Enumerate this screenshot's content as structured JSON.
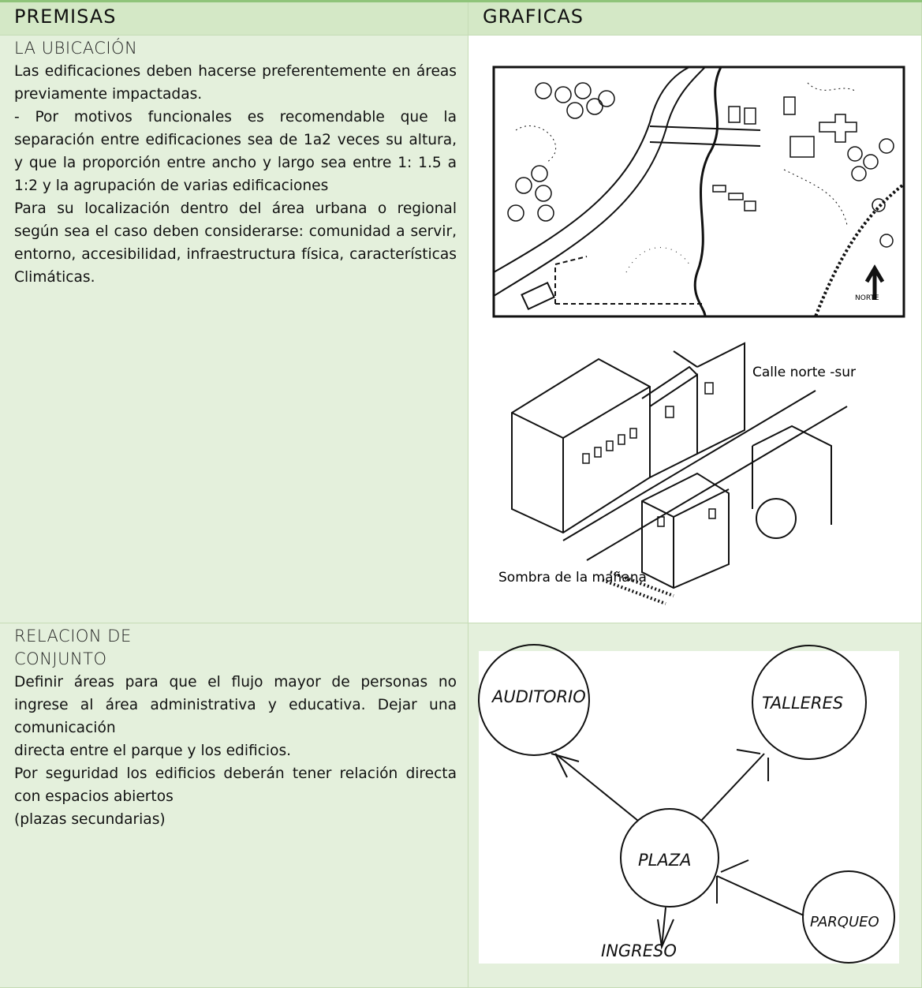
{
  "header": {
    "col1": "PREMISAS",
    "col2": "GRAFICAS"
  },
  "rows": [
    {
      "title": [
        "LA UBICACIÓN"
      ],
      "paragraphs": [
        "Las edificaciones deben hacerse preferentemente en áreas previamente impactadas.",
        "- Por motivos funcionales es recomendable que la separación entre edificaciones sea de 1a2 veces su altura, y que la proporción entre ancho y largo sea entre 1: 1.5 a 1:2 y la agrupación de varias edificaciones",
        "Para su localización dentro del área urbana o regional según sea el caso deben considerarse: comunidad a servir, entorno, accesibilidad, infraestructura física, características Climáticas."
      ],
      "figures": {
        "map_label": "NORTE",
        "street_label": "Calle norte -sur",
        "shadow_label": "Sombra de la mañana"
      }
    },
    {
      "title": [
        "RELACION DE",
        "CONJUNTO"
      ],
      "paragraphs": [
        "Definir áreas para que el flujo mayor de personas no ingrese al área administrativa y educativa. Dejar una comunicación",
        "directa entre el parque y los edificios.",
        "Por seguridad los edificios deberán tener relación directa con espacios abiertos",
        "(plazas secundarias)"
      ],
      "figures": {
        "nodes": [
          "AUDITORIO",
          "TALLERES",
          "PLAZA",
          "PARQUEO"
        ],
        "entry": "INGRESO"
      }
    }
  ]
}
